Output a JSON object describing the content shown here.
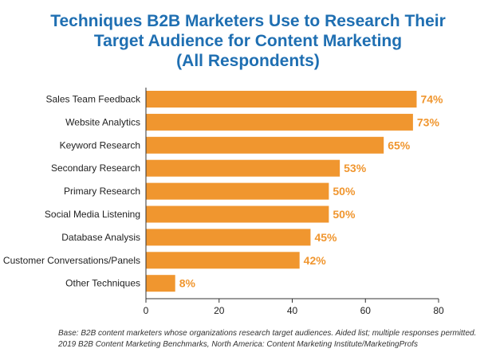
{
  "title_lines": [
    "Techniques B2B Marketers Use to Research Their",
    "Target Audience for Content Marketing",
    "(All Respondents)"
  ],
  "footnote_lines": [
    "Base: B2B content marketers whose organizations research target audiences. Aided list; multiple responses permitted.",
    "2019 B2B Content Marketing Benchmarks, North America: Content Marketing Institute/MarketingProfs"
  ],
  "colors": {
    "bar": "#f0962f",
    "title": "#1f6fb2",
    "label": "#f0962f",
    "axis": "#333333"
  },
  "chart_data": {
    "type": "bar",
    "orientation": "horizontal",
    "categories": [
      "Sales Team Feedback",
      "Website Analytics",
      "Keyword Research",
      "Secondary Research",
      "Primary Research",
      "Social Media Listening",
      "Database Analysis",
      "Customer Conversations/Panels",
      "Other Techniques"
    ],
    "values": [
      74,
      73,
      65,
      53,
      50,
      50,
      45,
      42,
      8
    ],
    "value_labels": [
      "74%",
      "73%",
      "65%",
      "53%",
      "50%",
      "50%",
      "45%",
      "42%",
      "8%"
    ],
    "xlim": [
      0,
      80
    ],
    "xticks": [
      0,
      20,
      40,
      60,
      80
    ],
    "grid": false,
    "legend": "none"
  }
}
